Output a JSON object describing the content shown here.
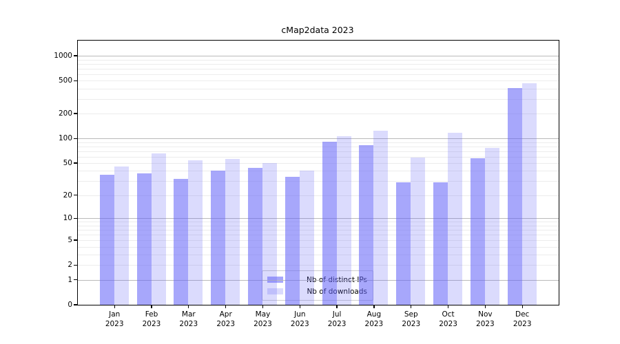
{
  "title": "cMap2data 2023",
  "legend": {
    "items": [
      {
        "label": "Nb of distinct IPs",
        "swatch": "dark-purple-swatch"
      },
      {
        "label": "Nb of downloads",
        "swatch": "light-purple-swatch"
      }
    ]
  },
  "y_axis": {
    "tick_labels": [
      "1000",
      "500",
      "200",
      "100",
      "50",
      "20",
      "10",
      "5",
      "2",
      "1",
      "0"
    ],
    "tick_values": [
      1000,
      500,
      200,
      100,
      50,
      20,
      10,
      5,
      2,
      1,
      0
    ]
  },
  "x_axis": {
    "months": [
      {
        "m": "Jan",
        "y": "2023"
      },
      {
        "m": "Feb",
        "y": "2023"
      },
      {
        "m": "Mar",
        "y": "2023"
      },
      {
        "m": "Apr",
        "y": "2023"
      },
      {
        "m": "May",
        "y": "2023"
      },
      {
        "m": "Jun",
        "y": "2023"
      },
      {
        "m": "Jul",
        "y": "2023"
      },
      {
        "m": "Aug",
        "y": "2023"
      },
      {
        "m": "Sep",
        "y": "2023"
      },
      {
        "m": "Oct",
        "y": "2023"
      },
      {
        "m": "Nov",
        "y": "2023"
      },
      {
        "m": "Dec",
        "y": "2023"
      }
    ]
  },
  "colors": {
    "bar_distinct_ips": "rgba(98,98,248,0.56)",
    "bar_downloads": "rgba(98,98,248,0.23)",
    "grid_major": "#b9b9b9",
    "grid_minor": "#ececec"
  },
  "chart_data": {
    "type": "bar",
    "title": "cMap2data 2023",
    "categories": [
      "Jan 2023",
      "Feb 2023",
      "Mar 2023",
      "Apr 2023",
      "May 2023",
      "Jun 2023",
      "Jul 2023",
      "Aug 2023",
      "Sep 2023",
      "Oct 2023",
      "Nov 2023",
      "Dec 2023"
    ],
    "series": [
      {
        "name": "Nb of distinct IPs",
        "values": [
          36,
          37,
          32,
          40,
          44,
          34,
          91,
          83,
          29,
          29,
          57,
          406
        ]
      },
      {
        "name": "Nb of downloads",
        "values": [
          45,
          66,
          54,
          56,
          50,
          40,
          106,
          124,
          58,
          118,
          77,
          464
        ]
      }
    ],
    "xlabel": "",
    "ylabel": "",
    "yscale": "log1p",
    "yticks": [
      0,
      1,
      2,
      5,
      10,
      20,
      50,
      100,
      200,
      500,
      1000
    ],
    "ylim": [
      0,
      1500
    ],
    "grid": "horizontal",
    "legend_position": "lower center"
  }
}
